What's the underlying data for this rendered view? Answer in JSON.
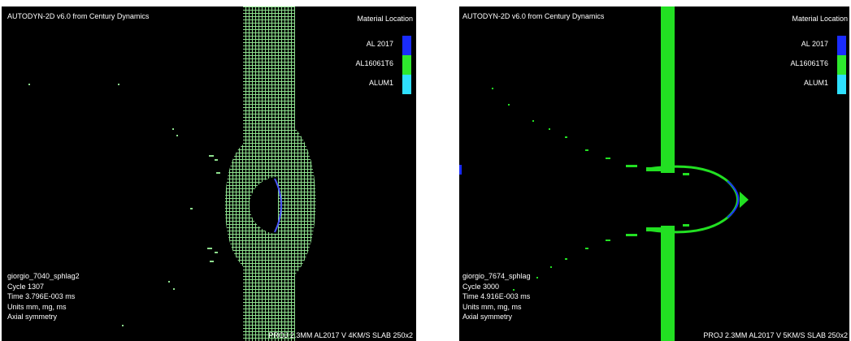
{
  "panels": [
    {
      "title": "AUTODYN-2D v6.0 from Century Dynamics",
      "legend": {
        "title": "Material Location",
        "items": [
          {
            "label": "AL 2017",
            "color": "#1a2cff"
          },
          {
            "label": "AL16061T6",
            "color": "#2ee82e"
          },
          {
            "label": "ALUM1",
            "color": "#2ee0ff"
          }
        ]
      },
      "info": {
        "name": "giorgio_7040_sphlag2",
        "cycle": "Cycle 1307",
        "time": "Time 3.796E-003 ms",
        "units": "Units mm, mg, ms",
        "symmetry": "Axial symmetry"
      },
      "footer": "PROJ 2.3MM AL2017  V 4KM/S SLAB 250x2"
    },
    {
      "title": "AUTODYN-2D v6.0 from Century Dynamics",
      "legend": {
        "title": "Material Location",
        "items": [
          {
            "label": "AL 2017",
            "color": "#1a2cff"
          },
          {
            "label": "AL16061T6",
            "color": "#2ee82e"
          },
          {
            "label": "ALUM1",
            "color": "#2ee0ff"
          }
        ]
      },
      "info": {
        "name": "giorgio_7674_sphlag",
        "cycle": "Cycle 3000",
        "time": "Time 4.916E-003 ms",
        "units": "Units mm, mg, ms",
        "symmetry": "Axial symmetry"
      },
      "footer": "PROJ 2.3MM AL2017  V 5KM/S SLAB 250x2"
    }
  ]
}
